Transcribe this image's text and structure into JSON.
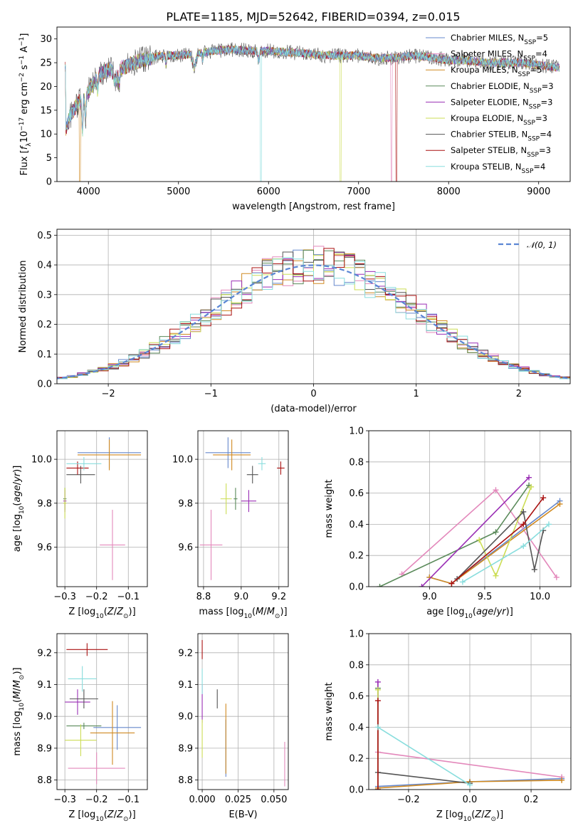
{
  "figure_title": "PLATE=1185, MJD=52642, FIBERID=0394, z=0.015",
  "colors": {
    "Chabrier MILES": "#6688cc",
    "Salpeter MILES": "#e388bb",
    "Kroupa MILES": "#d08a22",
    "Chabrier ELODIE": "#5a8a5a",
    "Salpeter ELODIE": "#9a2fb5",
    "Kroupa ELODIE": "#ccdd55",
    "Chabrier STELIB": "#555555",
    "Salpeter STELIB": "#aa1111",
    "Kroupa STELIB": "#88dddd"
  },
  "chart_data": [
    {
      "id": "spectrum",
      "type": "line",
      "title": "PLATE=1185, MJD=52642, FIBERID=0394, z=0.015",
      "xlabel": "wavelength [Angstrom, rest frame]",
      "ylabel": "Flux [f_λ 10^-17 erg cm^-2 s^-1 A^-1]",
      "xlim": [
        3650,
        9350
      ],
      "ylim": [
        0,
        32.5
      ],
      "xticks": [
        4000,
        5000,
        6000,
        7000,
        8000,
        9000
      ],
      "yticks": [
        0,
        5,
        10,
        15,
        20,
        25,
        30
      ],
      "legend_position": "top-right",
      "series": [
        {
          "name": "Chabrier MILES, N_SSP=5"
        },
        {
          "name": "Salpeter MILES, N_SSP=4"
        },
        {
          "name": "Kroupa MILES, N_SSP=5"
        },
        {
          "name": "Chabrier ELODIE, N_SSP=3"
        },
        {
          "name": "Salpeter ELODIE, N_SSP=3"
        },
        {
          "name": "Kroupa ELODIE, N_SSP=3"
        },
        {
          "name": "Chabrier STELIB, N_SSP=4"
        },
        {
          "name": "Salpeter STELIB, N_SSP=3"
        },
        {
          "name": "Kroupa STELIB, N_SSP=4"
        }
      ],
      "continuum": {
        "x": [
          3750,
          3800,
          3900,
          4000,
          4100,
          4200,
          4300,
          4400,
          4500,
          4600,
          4800,
          5000,
          5200,
          5400,
          5600,
          5800,
          6000,
          6200,
          6400,
          6600,
          6800,
          7000,
          7200,
          7400,
          7600,
          7800,
          8000,
          8200,
          8400,
          8600,
          8800,
          9000,
          9200
        ],
        "y": [
          11,
          14,
          17,
          19,
          22,
          23.5,
          24,
          24,
          25,
          25.5,
          26.5,
          26.5,
          27,
          27.5,
          27.8,
          27.5,
          27.5,
          27.2,
          27,
          26.5,
          26.5,
          26.5,
          26,
          26,
          26.5,
          26.2,
          25.5,
          25.5,
          25,
          25,
          25,
          24.5,
          24
        ]
      },
      "dips": [
        {
          "x": 3905,
          "y": 0
        },
        {
          "x": 5915,
          "y": 0
        },
        {
          "x": 6800,
          "y": 0
        },
        {
          "x": 7365,
          "y": 0
        },
        {
          "x": 7420,
          "y": 0
        }
      ]
    },
    {
      "id": "residuals",
      "type": "histogram",
      "xlabel": "(data-model)/error",
      "ylabel": "Normed distribution",
      "xlim": [
        -2.5,
        2.5
      ],
      "ylim": [
        0,
        0.52
      ],
      "xticks": [
        -2,
        -1,
        0,
        1,
        2
      ],
      "yticks": [
        0.0,
        0.1,
        0.2,
        0.3,
        0.4,
        0.5
      ],
      "grid": true,
      "bin_width": 0.1,
      "legend_position": "top-right",
      "reference": {
        "name": "𝒩(0, 1)",
        "type": "normal",
        "mean": 0,
        "sigma": 1
      }
    },
    {
      "id": "age_vs_Z",
      "type": "errorbar",
      "xlabel": "Z [log10(Z/Z☉)]",
      "ylabel": "age [log10(age/yr)]",
      "xlim": [
        -0.325,
        -0.04
      ],
      "ylim": [
        9.42,
        10.13
      ],
      "xticks": [
        -0.3,
        -0.2,
        -0.1
      ],
      "yticks": [
        9.6,
        9.8,
        10.0
      ],
      "grid": true,
      "points": [
        {
          "series": "Chabrier MILES",
          "x": -0.16,
          "xerr": 0.1,
          "y": 10.03,
          "yerr": 0.07
        },
        {
          "series": "Kroupa MILES",
          "x": -0.16,
          "xerr": 0.1,
          "y": 10.02,
          "yerr": 0.07
        },
        {
          "series": "Salpeter MILES",
          "x": -0.15,
          "xerr": 0.04,
          "y": 9.61,
          "yerr": 0.16
        },
        {
          "series": "Chabrier ELODIE",
          "x": -0.3,
          "xerr": 0.005,
          "y": 9.82,
          "yerr": 0.05
        },
        {
          "series": "Salpeter ELODIE",
          "x": -0.3,
          "xerr": 0.005,
          "y": 9.81,
          "yerr": 0.05
        },
        {
          "series": "Kroupa ELODIE",
          "x": -0.3,
          "xerr": 0.005,
          "y": 9.8,
          "yerr": 0.07
        },
        {
          "series": "Chabrier STELIB",
          "x": -0.25,
          "xerr": 0.045,
          "y": 9.93,
          "yerr": 0.04
        },
        {
          "series": "Salpeter STELIB",
          "x": -0.26,
          "xerr": 0.035,
          "y": 9.96,
          "yerr": 0.03
        },
        {
          "series": "Kroupa STELIB",
          "x": -0.24,
          "xerr": 0.055,
          "y": 9.98,
          "yerr": 0.03
        }
      ]
    },
    {
      "id": "age_vs_mass",
      "type": "errorbar",
      "xlabel": "mass [log10(M/M☉)]",
      "ylabel": "",
      "xlim": [
        8.77,
        9.25
      ],
      "ylim": [
        9.42,
        10.13
      ],
      "xticks": [
        8.8,
        9.0,
        9.2
      ],
      "yticks": [
        9.6,
        9.8,
        10.0
      ],
      "grid": true,
      "points": [
        {
          "series": "Chabrier MILES",
          "x": 8.93,
          "xerr": 0.12,
          "y": 10.03,
          "yerr": 0.07
        },
        {
          "series": "Kroupa MILES",
          "x": 8.95,
          "xerr": 0.1,
          "y": 10.02,
          "yerr": 0.07
        },
        {
          "series": "Salpeter MILES",
          "x": 8.84,
          "xerr": 0.06,
          "y": 9.61,
          "yerr": 0.16
        },
        {
          "series": "Chabrier ELODIE",
          "x": 8.97,
          "xerr": 0.01,
          "y": 9.82,
          "yerr": 0.05
        },
        {
          "series": "Salpeter ELODIE",
          "x": 9.04,
          "xerr": 0.04,
          "y": 9.81,
          "yerr": 0.05
        },
        {
          "series": "Kroupa ELODIE",
          "x": 8.92,
          "xerr": 0.03,
          "y": 9.82,
          "yerr": 0.07
        },
        {
          "series": "Chabrier STELIB",
          "x": 9.06,
          "xerr": 0.03,
          "y": 9.93,
          "yerr": 0.04
        },
        {
          "series": "Salpeter STELIB",
          "x": 9.21,
          "xerr": 0.02,
          "y": 9.96,
          "yerr": 0.03
        },
        {
          "series": "Kroupa STELIB",
          "x": 9.11,
          "xerr": 0.02,
          "y": 9.98,
          "yerr": 0.03
        }
      ]
    },
    {
      "id": "weight_vs_age",
      "type": "line",
      "xlabel": "age [log10(age/yr)]",
      "ylabel": "mass weight",
      "xlim": [
        8.45,
        10.28
      ],
      "ylim": [
        0,
        1.0
      ],
      "xticks": [
        9.0,
        9.5,
        10.0
      ],
      "yticks": [
        0.0,
        0.2,
        0.4,
        0.6,
        0.8,
        1.0
      ],
      "grid": true,
      "series": [
        {
          "series": "Chabrier MILES",
          "x": [
            9.0,
            9.2,
            10.18
          ],
          "y": [
            0.06,
            0.02,
            0.55
          ]
        },
        {
          "series": "Salpeter MILES",
          "x": [
            8.75,
            9.6,
            10.15
          ],
          "y": [
            0.08,
            0.62,
            0.06
          ]
        },
        {
          "series": "Kroupa MILES",
          "x": [
            9.0,
            9.2,
            10.18
          ],
          "y": [
            0.06,
            0.02,
            0.53
          ]
        },
        {
          "series": "Chabrier ELODIE",
          "x": [
            8.55,
            9.6,
            9.9
          ],
          "y": [
            0.0,
            0.35,
            0.65
          ]
        },
        {
          "series": "Salpeter ELODIE",
          "x": [
            8.93,
            9.9
          ],
          "y": [
            0.0,
            0.7
          ]
        },
        {
          "series": "Kroupa ELODIE",
          "x": [
            9.45,
            9.6,
            9.92
          ],
          "y": [
            0.3,
            0.07,
            0.64
          ]
        },
        {
          "series": "Chabrier STELIB",
          "x": [
            9.25,
            9.85,
            9.95,
            10.03
          ],
          "y": [
            0.05,
            0.48,
            0.11,
            0.36
          ]
        },
        {
          "series": "Salpeter STELIB",
          "x": [
            9.2,
            9.85,
            10.03
          ],
          "y": [
            0.02,
            0.4,
            0.57
          ]
        },
        {
          "series": "Kroupa STELIB",
          "x": [
            9.3,
            9.85,
            10.08
          ],
          "y": [
            0.03,
            0.26,
            0.4
          ]
        }
      ]
    },
    {
      "id": "mass_vs_Z",
      "type": "errorbar",
      "xlabel": "Z [log10(Z/Z☉)]",
      "ylabel": "mass [log10(M/M☉)]",
      "xlim": [
        -0.325,
        -0.04
      ],
      "ylim": [
        8.77,
        9.26
      ],
      "xticks": [
        -0.3,
        -0.2,
        -0.1
      ],
      "yticks": [
        8.8,
        8.9,
        9.0,
        9.1,
        9.2
      ],
      "grid": true,
      "points": [
        {
          "series": "Chabrier MILES",
          "x": -0.135,
          "xerr": 0.075,
          "y": 8.965,
          "yerr": 0.07
        },
        {
          "series": "Kroupa MILES",
          "x": -0.15,
          "xerr": 0.07,
          "y": 8.948,
          "yerr": 0.1
        },
        {
          "series": "Salpeter MILES",
          "x": -0.2,
          "xerr": 0.09,
          "y": 8.837,
          "yerr": 0.05
        },
        {
          "series": "Chabrier ELODIE",
          "x": -0.24,
          "xerr": 0.055,
          "y": 8.97,
          "yerr": 0.01
        },
        {
          "series": "Salpeter ELODIE",
          "x": -0.26,
          "xerr": 0.04,
          "y": 9.045,
          "yerr": 0.04
        },
        {
          "series": "Kroupa ELODIE",
          "x": -0.25,
          "xerr": 0.05,
          "y": 8.925,
          "yerr": 0.05
        },
        {
          "series": "Chabrier STELIB",
          "x": -0.24,
          "xerr": 0.045,
          "y": 9.055,
          "yerr": 0.03
        },
        {
          "series": "Salpeter STELIB",
          "x": -0.23,
          "xerr": 0.065,
          "y": 9.21,
          "yerr": 0.02
        },
        {
          "series": "Kroupa STELIB",
          "x": -0.245,
          "xerr": 0.045,
          "y": 9.118,
          "yerr": 0.04
        }
      ]
    },
    {
      "id": "mass_vs_ebv",
      "type": "errorbar",
      "xlabel": "E(B-V)",
      "ylabel": "",
      "xlim": [
        -0.003,
        0.06
      ],
      "ylim": [
        8.77,
        9.26
      ],
      "xticks": [
        0.0,
        0.025,
        0.05
      ],
      "xtick_labels": [
        "0.000",
        "0.025",
        "0.050"
      ],
      "yticks": [
        8.8,
        8.9,
        9.0,
        9.1,
        9.2
      ],
      "grid": true,
      "points": [
        {
          "series": "Chabrier MILES",
          "x": 0.0165,
          "xerr": 0,
          "y": 8.9,
          "yerr": 0.09
        },
        {
          "series": "Kroupa MILES",
          "x": 0.0165,
          "xerr": 0,
          "y": 8.93,
          "yerr": 0.11
        },
        {
          "series": "Salpeter MILES",
          "x": 0.0575,
          "xerr": 0,
          "y": 8.85,
          "yerr": 0.07
        },
        {
          "series": "Salpeter ELODIE",
          "x": 0.0,
          "xerr": 0,
          "y": 9.04,
          "yerr": 0.06
        },
        {
          "series": "Kroupa ELODIE",
          "x": 0.0,
          "xerr": 0,
          "y": 8.93,
          "yerr": 0.06
        },
        {
          "series": "Chabrier STELIB",
          "x": 0.0105,
          "xerr": 0,
          "y": 9.055,
          "yerr": 0.03
        },
        {
          "series": "Salpeter STELIB",
          "x": 0.0,
          "xerr": 0,
          "y": 9.21,
          "yerr": 0.03
        },
        {
          "series": "Kroupa STELIB",
          "x": 0.0,
          "xerr": 0,
          "y": 9.11,
          "yerr": 0.04
        }
      ]
    },
    {
      "id": "weight_vs_Z",
      "type": "line",
      "xlabel": "Z [log10(Z/Z☉)]",
      "ylabel": "mass weight",
      "xlim": [
        -0.33,
        0.33
      ],
      "ylim": [
        0,
        1.0
      ],
      "xticks": [
        -0.2,
        0.0,
        0.2
      ],
      "yticks": [
        0.0,
        0.2,
        0.4,
        0.6,
        0.8,
        1.0
      ],
      "grid": true,
      "series": [
        {
          "series": "Chabrier MILES",
          "x": [
            -0.3,
            0.0,
            0.3
          ],
          "y": [
            0.02,
            0.05,
            0.07
          ]
        },
        {
          "series": "Salpeter MILES",
          "x": [
            -0.3,
            0.3
          ],
          "y": [
            0.24,
            0.08
          ]
        },
        {
          "series": "Kroupa MILES",
          "x": [
            -0.3,
            0.0,
            0.3
          ],
          "y": [
            0.01,
            0.05,
            0.06
          ]
        },
        {
          "series": "Chabrier ELODIE",
          "x": [
            -0.3,
            -0.3
          ],
          "y": [
            0.0,
            0.65
          ]
        },
        {
          "series": "Salpeter ELODIE",
          "x": [
            -0.3,
            -0.3
          ],
          "y": [
            0.0,
            0.69
          ]
        },
        {
          "series": "Kroupa ELODIE",
          "x": [
            -0.3,
            -0.3
          ],
          "y": [
            0.0,
            0.64
          ]
        },
        {
          "series": "Chabrier STELIB",
          "x": [
            -0.3,
            0.0
          ],
          "y": [
            0.11,
            0.04
          ]
        },
        {
          "series": "Salpeter STELIB",
          "x": [
            -0.3,
            -0.3
          ],
          "y": [
            0.0,
            0.57
          ]
        },
        {
          "series": "Kroupa STELIB",
          "x": [
            -0.3,
            0.0
          ],
          "y": [
            0.4,
            0.03
          ]
        }
      ]
    }
  ]
}
